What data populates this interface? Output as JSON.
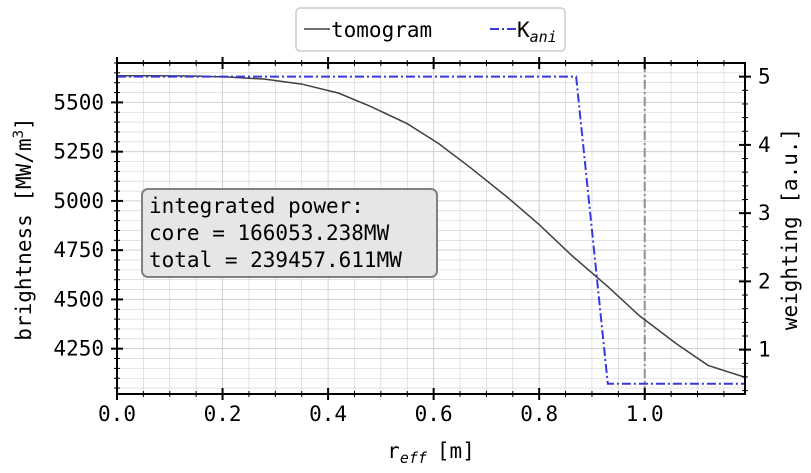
{
  "chart_data": {
    "type": "line",
    "xlabel": "r",
    "xlabel_sub": "eff",
    "xlabel_unit": "[m]",
    "ylabel_left": "brightness [MW/m",
    "ylabel_left_sup": "3",
    "ylabel_left_end": "]",
    "ylabel_right": "weighting [a.u.]",
    "xlim": [
      0.0,
      1.19
    ],
    "ylim_left": [
      4020,
      5700
    ],
    "ylim_right": [
      0.35,
      5.2
    ],
    "x_ticks": [
      0.0,
      0.2,
      0.4,
      0.6,
      0.8,
      1.0
    ],
    "x_tick_labels": [
      "0.0",
      "0.2",
      "0.4",
      "0.6",
      "0.8",
      "1.0"
    ],
    "y_left_ticks": [
      4250,
      4500,
      4750,
      5000,
      5250,
      5500
    ],
    "y_left_tick_labels": [
      "4250",
      "4500",
      "4750",
      "5000",
      "5250",
      "5500"
    ],
    "y_right_ticks": [
      1,
      2,
      3,
      4,
      5
    ],
    "y_right_tick_labels": [
      "1",
      "2",
      "3",
      "4",
      "5"
    ],
    "grid": true,
    "legend_position": "top-center, above plot",
    "vline_x": 1.0,
    "series": [
      {
        "name": "tomogram",
        "axis": "left",
        "color": "#404040",
        "style": "solid",
        "x": [
          0.0,
          0.07,
          0.14,
          0.21,
          0.28,
          0.35,
          0.42,
          0.48,
          0.55,
          0.61,
          0.67,
          0.74,
          0.8,
          0.86,
          0.93,
          0.99,
          1.06,
          1.12,
          1.19
        ],
        "y": [
          5635,
          5635,
          5634,
          5629,
          5618,
          5593,
          5547,
          5480,
          5392,
          5290,
          5168,
          5018,
          4880,
          4727,
          4565,
          4417,
          4275,
          4165,
          4105
        ]
      },
      {
        "name": "K",
        "name_sub": "ani",
        "axis": "right",
        "color": "#3838e0",
        "style": "dashdot",
        "x": [
          0.0,
          0.87,
          0.93,
          1.19
        ],
        "y": [
          5.0,
          5.0,
          0.5,
          0.5
        ]
      }
    ],
    "annotation": {
      "lines": [
        "integrated power:",
        "core = 166053.238MW",
        "total = 239457.611MW"
      ]
    }
  },
  "colors": {
    "tomogram": "#404040",
    "kani": "#3838e0",
    "grid": "#d0d0d0",
    "vline": "#909090",
    "annotation_bg": "#e6e6e6",
    "annotation_border": "#808080"
  }
}
